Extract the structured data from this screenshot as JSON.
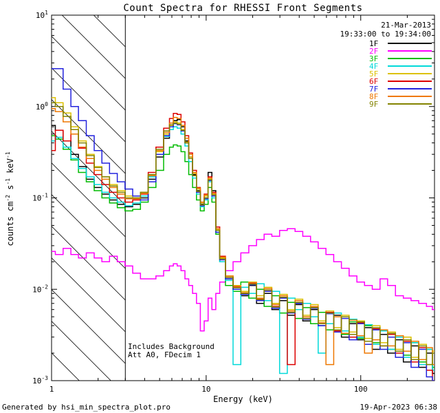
{
  "annotations": {
    "date": "21-Mar-2013",
    "time_range": "19:33:00 to 19:34:00",
    "line1": "Includes Background",
    "line2": "Att A0, FDecim 1"
  },
  "footer": {
    "left": "Generated by hsi_min_spectra_plot.pro",
    "right": "19-Apr-2023 06:38"
  },
  "chart_data": {
    "type": "line",
    "step": true,
    "scale": "log-log",
    "title": "Count Spectra for RHESSI Front Segments",
    "xlabel": "Energy (keV)",
    "ylabel_parts": {
      "p0": "counts cm",
      "s0": "-2",
      "p1": " s",
      "s1": "-1",
      "p2": " keV",
      "s2": "-1"
    },
    "xlim": [
      1,
      300
    ],
    "ylim": [
      0.001,
      10
    ],
    "grid": false,
    "legend_position": "top-right",
    "hatch_region": {
      "from": 1,
      "to": 3
    },
    "energies": [
      1.0,
      1.12,
      1.26,
      1.41,
      1.58,
      1.78,
      2.0,
      2.24,
      2.51,
      2.82,
      3.16,
      3.55,
      3.98,
      4.47,
      5.01,
      5.62,
      5.96,
      6.31,
      6.68,
      7.08,
      7.5,
      7.94,
      8.41,
      8.91,
      9.44,
      10.0,
      10.6,
      11.2,
      11.9,
      12.6,
      14.1,
      15.8,
      17.8,
      20.0,
      22.4,
      25.1,
      28.2,
      31.6,
      35.5,
      39.8,
      44.7,
      50.1,
      56.2,
      63.1,
      70.8,
      79.4,
      89.1,
      100,
      112,
      126,
      141,
      158,
      178,
      200,
      224,
      251,
      282,
      300
    ],
    "series": [
      {
        "label": "1F",
        "color": "#000000",
        "values": [
          0.62,
          0.55,
          0.42,
          0.3,
          0.22,
          0.16,
          0.13,
          0.11,
          0.095,
          0.085,
          0.08,
          0.085,
          0.1,
          0.16,
          0.28,
          0.45,
          0.6,
          0.7,
          0.72,
          0.6,
          0.42,
          0.28,
          0.18,
          0.12,
          0.085,
          0.1,
          0.19,
          0.12,
          0.045,
          0.022,
          0.013,
          0.01,
          0.0085,
          0.011,
          0.007,
          0.009,
          0.006,
          0.0075,
          0.0052,
          0.0068,
          0.0045,
          0.006,
          0.004,
          0.0036,
          0.0052,
          0.003,
          0.0042,
          0.0028,
          0.0038,
          0.0022,
          0.0032,
          0.002,
          0.0028,
          0.0016,
          0.0024,
          0.0014,
          0.002,
          0.0012
        ]
      },
      {
        "label": "2F",
        "color": "#ff00ff",
        "values": [
          0.026,
          0.024,
          0.028,
          0.024,
          0.022,
          0.025,
          0.022,
          0.02,
          0.023,
          0.02,
          0.018,
          0.015,
          0.013,
          0.013,
          0.014,
          0.016,
          0.018,
          0.019,
          0.018,
          0.016,
          0.013,
          0.011,
          0.009,
          0.007,
          0.0035,
          0.0045,
          0.008,
          0.006,
          0.009,
          0.012,
          0.016,
          0.02,
          0.025,
          0.03,
          0.035,
          0.04,
          0.038,
          0.044,
          0.046,
          0.043,
          0.038,
          0.033,
          0.028,
          0.024,
          0.02,
          0.017,
          0.014,
          0.012,
          0.011,
          0.01,
          0.013,
          0.011,
          0.0085,
          0.008,
          0.0075,
          0.007,
          0.0065,
          0.006
        ]
      },
      {
        "label": "3F",
        "color": "#00bb00",
        "values": [
          0.48,
          0.44,
          0.34,
          0.26,
          0.19,
          0.15,
          0.12,
          0.1,
          0.088,
          0.078,
          0.072,
          0.075,
          0.09,
          0.13,
          0.2,
          0.3,
          0.36,
          0.38,
          0.37,
          0.32,
          0.25,
          0.18,
          0.13,
          0.095,
          0.072,
          0.085,
          0.13,
          0.09,
          0.04,
          0.02,
          0.011,
          0.0095,
          0.012,
          0.008,
          0.01,
          0.0065,
          0.0085,
          0.0055,
          0.0072,
          0.0048,
          0.0063,
          0.0042,
          0.0056,
          0.0036,
          0.005,
          0.0032,
          0.0044,
          0.0029,
          0.004,
          0.0026,
          0.0035,
          0.0022,
          0.003,
          0.0019,
          0.0026,
          0.0016,
          0.0022,
          0.0014
        ]
      },
      {
        "label": "4F",
        "color": "#00d9d9",
        "values": [
          0.42,
          0.46,
          0.36,
          0.27,
          0.21,
          0.17,
          0.14,
          0.115,
          0.1,
          0.09,
          0.082,
          0.088,
          0.105,
          0.17,
          0.3,
          0.47,
          0.56,
          0.6,
          0.58,
          0.5,
          0.37,
          0.25,
          0.165,
          0.11,
          0.08,
          0.095,
          0.15,
          0.1,
          0.042,
          0.02,
          0.0125,
          0.0015,
          0.0105,
          0.009,
          0.0115,
          0.0075,
          0.0095,
          0.0012,
          0.008,
          0.006,
          0.007,
          0.005,
          0.002,
          0.0042,
          0.0055,
          0.0035,
          0.0047,
          0.003,
          0.0041,
          0.0025,
          0.0035,
          0.0022,
          0.003,
          0.0018,
          0.0026,
          0.0015,
          0.0022,
          0.0013
        ]
      },
      {
        "label": "5F",
        "color": "#dcc000",
        "values": [
          1.25,
          1.1,
          0.85,
          0.6,
          0.42,
          0.3,
          0.22,
          0.17,
          0.14,
          0.12,
          0.105,
          0.1,
          0.115,
          0.18,
          0.32,
          0.5,
          0.62,
          0.68,
          0.66,
          0.56,
          0.41,
          0.28,
          0.185,
          0.125,
          0.088,
          0.105,
          0.16,
          0.11,
          0.045,
          0.022,
          0.014,
          0.011,
          0.0095,
          0.012,
          0.0085,
          0.0105,
          0.007,
          0.0088,
          0.006,
          0.0078,
          0.0052,
          0.0068,
          0.0045,
          0.0058,
          0.0038,
          0.0052,
          0.0034,
          0.0045,
          0.0029,
          0.004,
          0.0026,
          0.0034,
          0.0022,
          0.003,
          0.0018,
          0.0025,
          0.0015,
          0.0021
        ]
      },
      {
        "label": "6F",
        "color": "#dd0000",
        "values": [
          0.33,
          0.55,
          0.42,
          0.5,
          0.35,
          0.24,
          0.18,
          0.14,
          0.115,
          0.1,
          0.09,
          0.095,
          0.11,
          0.19,
          0.36,
          0.58,
          0.74,
          0.84,
          0.82,
          0.68,
          0.48,
          0.31,
          0.2,
          0.13,
          0.09,
          0.11,
          0.17,
          0.115,
          0.048,
          0.023,
          0.0135,
          0.0105,
          0.009,
          0.0115,
          0.0078,
          0.0098,
          0.0065,
          0.0082,
          0.0015,
          0.0072,
          0.0048,
          0.0063,
          0.0042,
          0.0056,
          0.0035,
          0.005,
          0.003,
          0.0043,
          0.0027,
          0.0037,
          0.0024,
          0.0032,
          0.002,
          0.0027,
          0.0016,
          0.0023,
          0.0013,
          0.001
        ]
      },
      {
        "label": "7F",
        "color": "#2222dd",
        "values": [
          2.6,
          2.6,
          1.55,
          1.0,
          0.7,
          0.48,
          0.33,
          0.24,
          0.185,
          0.15,
          0.125,
          0.105,
          0.095,
          0.15,
          0.3,
          0.48,
          0.6,
          0.65,
          0.63,
          0.54,
          0.4,
          0.27,
          0.175,
          0.115,
          0.082,
          0.098,
          0.155,
          0.105,
          0.042,
          0.021,
          0.013,
          0.01,
          0.0088,
          0.0112,
          0.0075,
          0.0095,
          0.0062,
          0.008,
          0.0055,
          0.007,
          0.0047,
          0.0062,
          0.004,
          0.0054,
          0.0034,
          0.0048,
          0.0028,
          0.0042,
          0.0025,
          0.0036,
          0.0022,
          0.003,
          0.0018,
          0.0026,
          0.0014,
          0.0022,
          0.0011,
          0.001
        ]
      },
      {
        "label": "8F",
        "color": "#ee7700",
        "values": [
          0.95,
          0.88,
          0.68,
          0.5,
          0.36,
          0.27,
          0.2,
          0.16,
          0.13,
          0.11,
          0.098,
          0.098,
          0.112,
          0.175,
          0.33,
          0.52,
          0.66,
          0.76,
          0.74,
          0.62,
          0.45,
          0.3,
          0.19,
          0.128,
          0.09,
          0.108,
          0.165,
          0.112,
          0.046,
          0.0225,
          0.014,
          0.0108,
          0.0092,
          0.0118,
          0.008,
          0.0102,
          0.0068,
          0.0085,
          0.0058,
          0.0075,
          0.005,
          0.0065,
          0.0043,
          0.0015,
          0.005,
          0.0033,
          0.0046,
          0.0031,
          0.002,
          0.0028,
          0.0036,
          0.0024,
          0.0031,
          0.0021,
          0.0027,
          0.0017,
          0.0023,
          0.0015
        ]
      },
      {
        "label": "9F",
        "color": "#838300",
        "values": [
          1.1,
          1.0,
          0.78,
          0.56,
          0.4,
          0.29,
          0.215,
          0.17,
          0.135,
          0.115,
          0.1,
          0.1,
          0.115,
          0.18,
          0.34,
          0.54,
          0.63,
          0.66,
          0.64,
          0.55,
          0.4,
          0.27,
          0.175,
          0.118,
          0.084,
          0.1,
          0.158,
          0.108,
          0.044,
          0.0215,
          0.0135,
          0.0104,
          0.009,
          0.0114,
          0.0077,
          0.0098,
          0.0064,
          0.0082,
          0.0056,
          0.0072,
          0.0048,
          0.0063,
          0.0042,
          0.0055,
          0.0036,
          0.005,
          0.0032,
          0.0044,
          0.0027,
          0.0038,
          0.0024,
          0.0033,
          0.0021,
          0.0028,
          0.0017,
          0.0024,
          0.0015,
          0.002
        ]
      }
    ]
  }
}
